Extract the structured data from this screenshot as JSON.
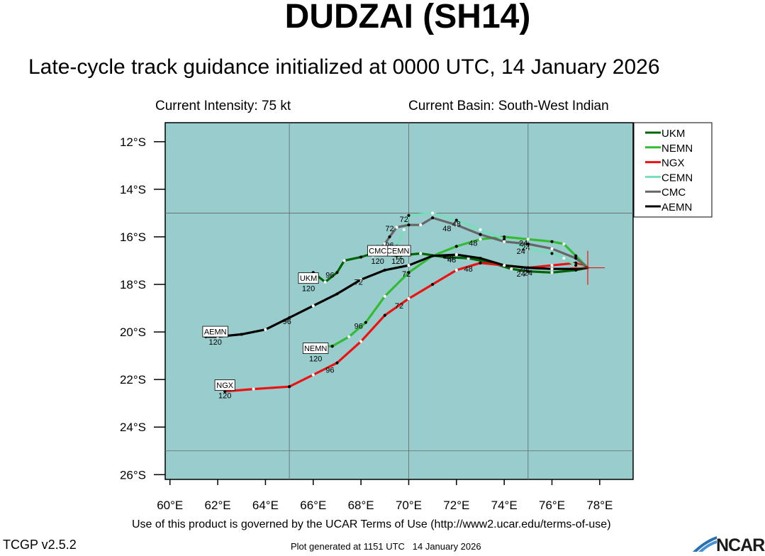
{
  "header": {
    "title": "DUDZAI (SH14)",
    "subtitle": "Late-cycle track guidance initialized at 0000 UTC, 14 January 2026",
    "intensity": "Current Intensity: 75 kt",
    "basin": "Current Basin: South-West Indian"
  },
  "footer": {
    "terms": "Use of this product is governed by the UCAR Terms of Use (http://www2.ucar.edu/terms-of-use)",
    "version": "TCGP v2.5.2",
    "generated": "Plot generated at 1151 UTC   14 January 2026",
    "logo": "NCAR"
  },
  "colors": {
    "ocean": "#99cccc",
    "UKM": "#006400",
    "NEMN": "#33bb33",
    "NGX": "#ee1111",
    "CEMN": "#77ddbb",
    "CMC": "#666666",
    "AEMN": "#000000"
  },
  "chart_data": {
    "type": "line",
    "xlabel": "",
    "ylabel": "",
    "xlim": [
      59.8,
      79.4
    ],
    "ylim": [
      -26.2,
      -11.2
    ],
    "x_ticks": [
      {
        "v": 60,
        "label": "60°E"
      },
      {
        "v": 62,
        "label": "62°E"
      },
      {
        "v": 64,
        "label": "64°E"
      },
      {
        "v": 66,
        "label": "66°E"
      },
      {
        "v": 68,
        "label": "68°E"
      },
      {
        "v": 70,
        "label": "70°E"
      },
      {
        "v": 72,
        "label": "72°E"
      },
      {
        "v": 74,
        "label": "74°E"
      },
      {
        "v": 76,
        "label": "76°E"
      },
      {
        "v": 78,
        "label": "78°E"
      }
    ],
    "y_ticks": [
      {
        "v": -12,
        "label": "12°S"
      },
      {
        "v": -14,
        "label": "14°S"
      },
      {
        "v": -16,
        "label": "16°S"
      },
      {
        "v": -18,
        "label": "18°S"
      },
      {
        "v": -20,
        "label": "20°S"
      },
      {
        "v": -22,
        "label": "22°S"
      },
      {
        "v": -24,
        "label": "24°S"
      },
      {
        "v": -26,
        "label": "26°S"
      }
    ],
    "grid_lon": [
      65,
      70,
      75
    ],
    "grid_lat": [
      -15,
      -25
    ],
    "legend_position": "top-right",
    "current_position": {
      "lon": 77.5,
      "lat": -17.3
    },
    "series": [
      {
        "name": "UKM",
        "points": [
          [
            77.5,
            -17.3
          ],
          [
            77.0,
            -17.4
          ],
          [
            76.0,
            -17.5
          ],
          [
            75.0,
            -17.45
          ],
          [
            74.3,
            -17.35
          ],
          [
            73.5,
            -17.1
          ],
          [
            72.5,
            -16.9
          ],
          [
            71.5,
            -16.85
          ],
          [
            70.5,
            -16.7
          ],
          [
            69.5,
            -16.8
          ],
          [
            68.5,
            -16.7
          ],
          [
            68.0,
            -16.85
          ],
          [
            67.3,
            -17.0
          ],
          [
            67.0,
            -17.5
          ],
          [
            66.5,
            -17.9
          ],
          [
            66.0,
            -17.5
          ],
          [
            65.8,
            -17.8
          ]
        ],
        "tau": [
          {
            "label": "24",
            "lon": 74.7,
            "lat": -17.55
          },
          {
            "label": "48",
            "lon": 71.8,
            "lat": -16.95
          },
          {
            "label": "72",
            "lon": 69.6,
            "lat": -16.8
          },
          {
            "label": "96",
            "lon": 66.7,
            "lat": -17.6
          }
        ],
        "end_label": "UKM",
        "end_hour": "120",
        "end_box": {
          "lon": 65.8,
          "lat": -17.75
        }
      },
      {
        "name": "NEMN",
        "points": [
          [
            77.5,
            -17.3
          ],
          [
            77.0,
            -16.8
          ],
          [
            76.5,
            -16.3
          ],
          [
            76.0,
            -16.2
          ],
          [
            75.0,
            -16.1
          ],
          [
            74.0,
            -16.0
          ],
          [
            73.0,
            -16.1
          ],
          [
            72.0,
            -16.4
          ],
          [
            71.0,
            -16.8
          ],
          [
            70.0,
            -17.5
          ],
          [
            69.0,
            -18.5
          ],
          [
            68.2,
            -19.6
          ],
          [
            67.5,
            -20.2
          ],
          [
            66.8,
            -20.6
          ],
          [
            66.2,
            -20.6
          ]
        ],
        "tau": [
          {
            "label": "24",
            "lon": 74.8,
            "lat": -16.25
          },
          {
            "label": "48",
            "lon": 72.7,
            "lat": -16.25
          },
          {
            "label": "72",
            "lon": 69.9,
            "lat": -17.55
          },
          {
            "label": "96",
            "lon": 67.9,
            "lat": -19.75
          }
        ],
        "end_label": "NEMN",
        "end_hour": "120",
        "end_box": {
          "lon": 66.1,
          "lat": -20.7
        }
      },
      {
        "name": "NGX",
        "points": [
          [
            77.5,
            -17.3
          ],
          [
            77.0,
            -17.1
          ],
          [
            76.0,
            -17.2
          ],
          [
            75.0,
            -17.3
          ],
          [
            74.0,
            -17.2
          ],
          [
            73.0,
            -17.1
          ],
          [
            72.0,
            -17.4
          ],
          [
            71.0,
            -18.0
          ],
          [
            70.0,
            -18.6
          ],
          [
            69.0,
            -19.3
          ],
          [
            68.0,
            -20.4
          ],
          [
            67.0,
            -21.3
          ],
          [
            66.0,
            -21.8
          ],
          [
            65.0,
            -22.3
          ],
          [
            63.5,
            -22.4
          ],
          [
            62.3,
            -22.5
          ]
        ],
        "tau": [
          {
            "label": "24",
            "lon": 75.0,
            "lat": -17.5
          },
          {
            "label": "48",
            "lon": 72.5,
            "lat": -17.35
          },
          {
            "label": "72",
            "lon": 69.6,
            "lat": -18.9
          },
          {
            "label": "96",
            "lon": 66.7,
            "lat": -21.6
          }
        ],
        "end_label": "NGX",
        "end_hour": "120",
        "end_box": {
          "lon": 62.3,
          "lat": -22.25
        }
      },
      {
        "name": "CEMN",
        "points": [
          [
            77.5,
            -17.3
          ],
          [
            77.0,
            -17.2
          ],
          [
            76.5,
            -16.9
          ],
          [
            76.0,
            -16.7
          ],
          [
            75.0,
            -16.5
          ],
          [
            74.0,
            -16.1
          ],
          [
            73.0,
            -15.7
          ],
          [
            72.0,
            -15.3
          ],
          [
            71.0,
            -15.0
          ],
          [
            70.0,
            -15.1
          ],
          [
            69.8,
            -15.7
          ],
          [
            69.5,
            -16.4
          ],
          [
            69.6,
            -16.7
          ]
        ],
        "tau": [
          {
            "label": "24",
            "lon": 74.7,
            "lat": -16.6
          },
          {
            "label": "48",
            "lon": 71.6,
            "lat": -15.65
          },
          {
            "label": "72",
            "lon": 69.8,
            "lat": -15.25
          },
          {
            "label": "96",
            "lon": 69.2,
            "lat": -16.35
          }
        ],
        "end_label": "CEMN",
        "end_hour": "120",
        "end_box": {
          "lon": 69.55,
          "lat": -16.6
        }
      },
      {
        "name": "CMC",
        "points": [
          [
            77.5,
            -17.3
          ],
          [
            77.0,
            -16.9
          ],
          [
            76.0,
            -16.5
          ],
          [
            75.0,
            -16.3
          ],
          [
            74.0,
            -16.2
          ],
          [
            73.0,
            -15.9
          ],
          [
            72.0,
            -15.5
          ],
          [
            71.0,
            -15.2
          ],
          [
            70.5,
            -15.5
          ],
          [
            70.0,
            -15.5
          ],
          [
            69.5,
            -15.6
          ],
          [
            69.2,
            -16.0
          ],
          [
            69.0,
            -16.3
          ],
          [
            68.8,
            -16.5
          ],
          [
            68.5,
            -16.8
          ]
        ],
        "tau": [
          {
            "label": "24",
            "lon": 74.9,
            "lat": -16.45
          },
          {
            "label": "48",
            "lon": 72.0,
            "lat": -15.45
          },
          {
            "label": "72",
            "lon": 69.2,
            "lat": -15.65
          },
          {
            "label": "96",
            "lon": 68.8,
            "lat": -16.45
          }
        ],
        "end_label": "CMC",
        "end_hour": "120",
        "end_box": {
          "lon": 68.7,
          "lat": -16.6
        }
      },
      {
        "name": "AEMN",
        "points": [
          [
            77.5,
            -17.3
          ],
          [
            77.0,
            -17.35
          ],
          [
            76.0,
            -17.35
          ],
          [
            75.0,
            -17.3
          ],
          [
            74.0,
            -17.2
          ],
          [
            73.0,
            -16.9
          ],
          [
            72.0,
            -16.75
          ],
          [
            71.0,
            -16.8
          ],
          [
            70.0,
            -17.2
          ],
          [
            69.0,
            -17.4
          ],
          [
            68.0,
            -17.8
          ],
          [
            67.0,
            -18.4
          ],
          [
            66.0,
            -18.9
          ],
          [
            65.0,
            -19.4
          ],
          [
            64.0,
            -19.9
          ],
          [
            63.0,
            -20.1
          ],
          [
            62.0,
            -20.2
          ],
          [
            61.5,
            -20.2
          ]
        ],
        "tau": [
          {
            "label": "24",
            "lon": 74.8,
            "lat": -17.35
          },
          {
            "label": "48",
            "lon": 71.7,
            "lat": -16.85
          },
          {
            "label": "72",
            "lon": 67.9,
            "lat": -17.9
          },
          {
            "label": "96",
            "lon": 64.9,
            "lat": -19.55
          }
        ],
        "end_label": "AEMN",
        "end_hour": "120",
        "end_box": {
          "lon": 61.9,
          "lat": -20.0
        }
      }
    ]
  }
}
